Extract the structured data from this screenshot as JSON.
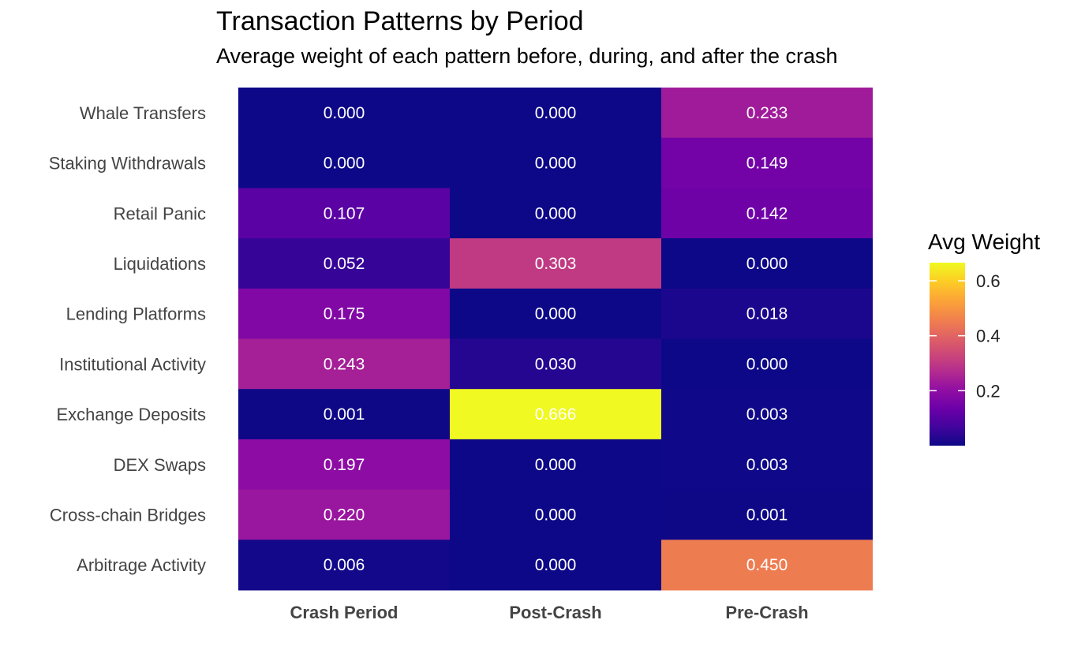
{
  "title": "Transaction Patterns by Period",
  "subtitle": "Average weight of each pattern before, during, and after the crash",
  "chart_data": {
    "type": "heatmap",
    "title": "Transaction Patterns by Period",
    "subtitle": "Average weight of each pattern before, during, and after the crash",
    "xlabel": "",
    "ylabel": "",
    "columns": [
      "Crash Period",
      "Post-Crash",
      "Pre-Crash"
    ],
    "rows": [
      "Whale Transfers",
      "Staking Withdrawals",
      "Retail Panic",
      "Liquidations",
      "Lending Platforms",
      "Institutional Activity",
      "Exchange Deposits",
      "DEX Swaps",
      "Cross-chain Bridges",
      "Arbitrage Activity"
    ],
    "values": [
      [
        0.0,
        0.0,
        0.233
      ],
      [
        0.0,
        0.0,
        0.149
      ],
      [
        0.107,
        0.0,
        0.142
      ],
      [
        0.052,
        0.303,
        0.0
      ],
      [
        0.175,
        0.0,
        0.018
      ],
      [
        0.243,
        0.03,
        0.0
      ],
      [
        0.001,
        0.666,
        0.003
      ],
      [
        0.197,
        0.0,
        0.003
      ],
      [
        0.22,
        0.0,
        0.001
      ],
      [
        0.006,
        0.0,
        0.45
      ]
    ],
    "value_labels": [
      [
        "0.000",
        "0.000",
        "0.233"
      ],
      [
        "0.000",
        "0.000",
        "0.149"
      ],
      [
        "0.107",
        "0.000",
        "0.142"
      ],
      [
        "0.052",
        "0.303",
        "0.000"
      ],
      [
        "0.175",
        "0.000",
        "0.018"
      ],
      [
        "0.243",
        "0.030",
        "0.000"
      ],
      [
        "0.001",
        "0.666",
        "0.003"
      ],
      [
        "0.197",
        "0.000",
        "0.003"
      ],
      [
        "0.220",
        "0.000",
        "0.001"
      ],
      [
        "0.006",
        "0.000",
        "0.450"
      ]
    ],
    "color_scale": "plasma",
    "color_range": [
      0,
      0.666
    ],
    "legend": {
      "title": "Avg Weight",
      "ticks": [
        0.2,
        0.4,
        0.6
      ],
      "tick_labels": [
        "0.2",
        "0.4",
        "0.6"
      ],
      "placement": "right"
    },
    "grid": false
  }
}
